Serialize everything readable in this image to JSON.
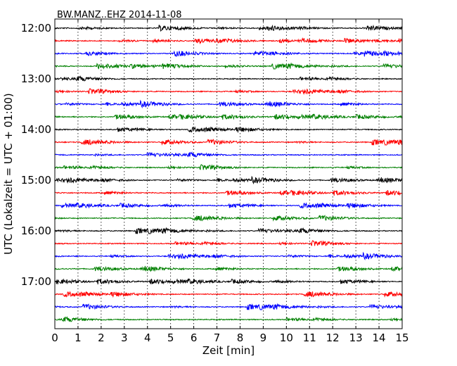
{
  "chart_data": {
    "type": "line",
    "title": "BW.MANZ..EHZ 2014-11-08",
    "xlabel": "Zeit  [min]",
    "ylabel": "UTC (Lokalzeit = UTC + 01:00)",
    "xlim": [
      0,
      15
    ],
    "x_ticks": [
      "0",
      "1",
      "2",
      "3",
      "4",
      "5",
      "6",
      "7",
      "8",
      "9",
      "10",
      "11",
      "12",
      "13",
      "14",
      "15"
    ],
    "y_tick_labels": [
      "12:00",
      "13:00",
      "14:00",
      "15:00",
      "16:00",
      "17:00"
    ],
    "grid": "vertical dotted",
    "trace_interval_minutes": 15,
    "start_time": "12:00",
    "colors": [
      "#000000",
      "#ff0000",
      "#0000ff",
      "#008000"
    ],
    "traces": [
      {
        "start": "12:00",
        "color": "#000000"
      },
      {
        "start": "12:15",
        "color": "#ff0000"
      },
      {
        "start": "12:30",
        "color": "#0000ff"
      },
      {
        "start": "12:45",
        "color": "#008000"
      },
      {
        "start": "13:00",
        "color": "#000000"
      },
      {
        "start": "13:15",
        "color": "#ff0000"
      },
      {
        "start": "13:30",
        "color": "#0000ff"
      },
      {
        "start": "13:45",
        "color": "#008000"
      },
      {
        "start": "14:00",
        "color": "#000000"
      },
      {
        "start": "14:15",
        "color": "#ff0000"
      },
      {
        "start": "14:30",
        "color": "#0000ff"
      },
      {
        "start": "14:45",
        "color": "#008000"
      },
      {
        "start": "15:00",
        "color": "#000000"
      },
      {
        "start": "15:15",
        "color": "#ff0000"
      },
      {
        "start": "15:30",
        "color": "#0000ff"
      },
      {
        "start": "15:45",
        "color": "#008000"
      },
      {
        "start": "16:00",
        "color": "#000000"
      },
      {
        "start": "16:15",
        "color": "#ff0000"
      },
      {
        "start": "16:30",
        "color": "#0000ff"
      },
      {
        "start": "16:45",
        "color": "#008000"
      },
      {
        "start": "17:00",
        "color": "#000000"
      },
      {
        "start": "17:15",
        "color": "#ff0000"
      },
      {
        "start": "17:30",
        "color": "#0000ff"
      },
      {
        "start": "17:45",
        "color": "#008000"
      }
    ]
  }
}
